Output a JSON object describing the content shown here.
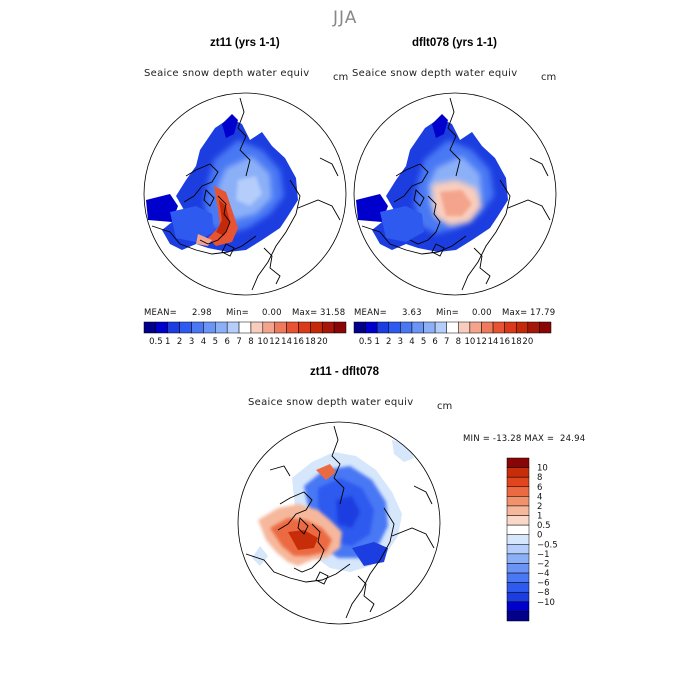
{
  "season": "JJA",
  "colors": {
    "abs_scale": [
      "#00008b",
      "#0000cd",
      "#1c3ee0",
      "#2e5af0",
      "#4a78f4",
      "#6a94f6",
      "#8cb0f8",
      "#b4cdfa",
      "#ffffff",
      "#f9cdbd",
      "#f4a48c",
      "#ee7b5d",
      "#e65433",
      "#d93a1a",
      "#c42a0a",
      "#a51708",
      "#8a0606"
    ],
    "diff_scale": [
      "#00008b",
      "#0000cd",
      "#1c3ee0",
      "#2e5af0",
      "#4a78f4",
      "#6a94f6",
      "#8cb0f8",
      "#b4cdfa",
      "#d6e6fb",
      "#ffffff",
      "#f9d8c8",
      "#f6b89c",
      "#f1926d",
      "#eb6a42",
      "#e0451e",
      "#c82d0a",
      "#8a0606"
    ]
  },
  "chart_data": [
    {
      "type": "heatmap",
      "title": "zt11 (yrs 1-1)",
      "variable": "Seaice snow depth water equiv",
      "units": "cm",
      "stats": {
        "mean_label": "MEAN=",
        "mean": "2.98",
        "min_label": "Min=",
        "min": "0.00",
        "max_label": "Max=",
        "max": "31.58"
      },
      "colorbar_ticks": [
        "0.5",
        "1",
        "2",
        "3",
        "4",
        "5",
        "6",
        "7",
        "8",
        "10",
        "12",
        "14",
        "16",
        "18",
        "20"
      ]
    },
    {
      "type": "heatmap",
      "title": "dflt078 (yrs 1-1)",
      "variable": "Seaice snow depth water equiv",
      "units": "cm",
      "stats": {
        "mean_label": "MEAN=",
        "mean": "3.63",
        "min_label": "Min=",
        "min": "0.00",
        "max_label": "Max=",
        "max": "17.79"
      },
      "colorbar_ticks": [
        "0.5",
        "1",
        "2",
        "3",
        "4",
        "5",
        "6",
        "7",
        "8",
        "10",
        "12",
        "14",
        "16",
        "18",
        "20"
      ]
    },
    {
      "type": "heatmap",
      "title": "zt11 - dflt078",
      "variable": "Seaice snow depth water equiv",
      "units": "cm",
      "range_text": "MIN = -13.28 MAX =  24.94",
      "colorbar_ticks": [
        "10",
        "8",
        "6",
        "4",
        "2",
        "1",
        "0.5",
        "0",
        "−0.5",
        "−1",
        "−2",
        "−4",
        "−6",
        "−8",
        "−10"
      ]
    }
  ]
}
